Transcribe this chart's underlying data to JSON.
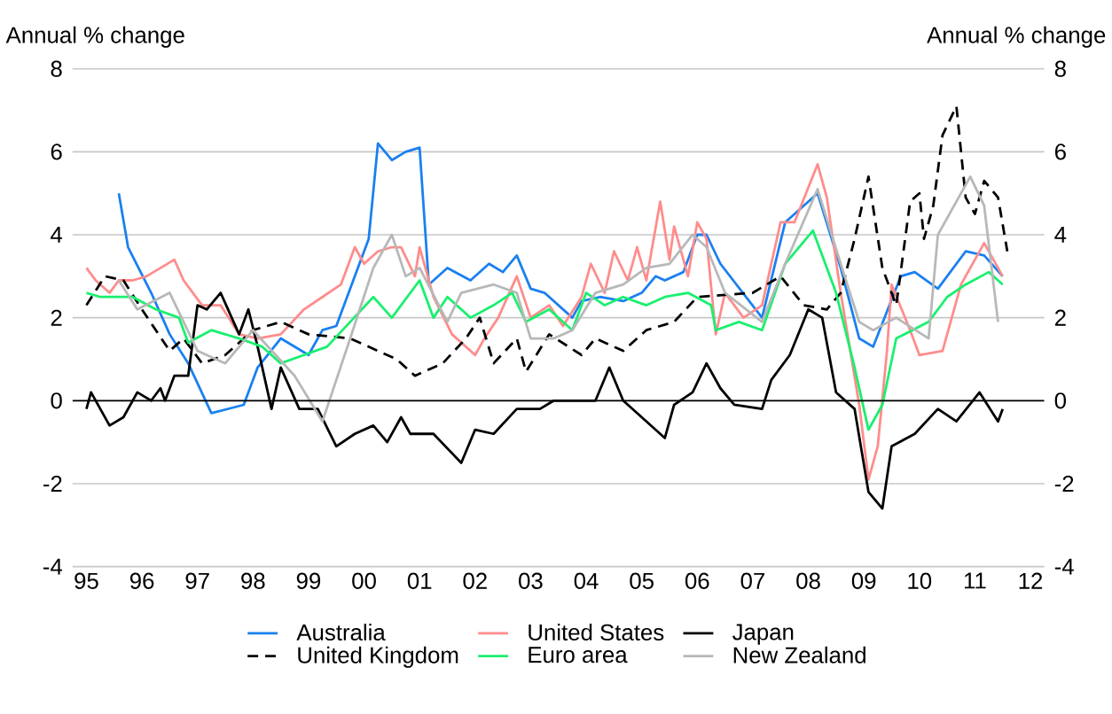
{
  "chart_data": {
    "type": "line",
    "ylabel": "Annual % change",
    "y2label": "Annual % change",
    "xlim": [
      "1995-04",
      "2012-10"
    ],
    "xticks": [
      {
        "value": "1995-07",
        "label": "95"
      },
      {
        "value": "1996-07",
        "label": "96"
      },
      {
        "value": "1997-07",
        "label": "97"
      },
      {
        "value": "1998-07",
        "label": "98"
      },
      {
        "value": "1999-07",
        "label": "99"
      },
      {
        "value": "2000-07",
        "label": "00"
      },
      {
        "value": "2001-07",
        "label": "01"
      },
      {
        "value": "2002-07",
        "label": "02"
      },
      {
        "value": "2003-07",
        "label": "03"
      },
      {
        "value": "2004-07",
        "label": "04"
      },
      {
        "value": "2005-07",
        "label": "05"
      },
      {
        "value": "2006-07",
        "label": "06"
      },
      {
        "value": "2007-07",
        "label": "07"
      },
      {
        "value": "2008-07",
        "label": "08"
      },
      {
        "value": "2009-07",
        "label": "09"
      },
      {
        "value": "2010-07",
        "label": "10"
      },
      {
        "value": "2011-07",
        "label": "11"
      },
      {
        "value": "2012-07",
        "label": "12"
      }
    ],
    "ylim": [
      -4,
      8
    ],
    "yticks": [
      -4,
      -2,
      0,
      2,
      4,
      6,
      8
    ],
    "y2lim": [
      -4,
      8
    ],
    "y2ticks": [
      -4,
      -2,
      0,
      2,
      4,
      6,
      8
    ],
    "grid": "y",
    "legend": "bottom",
    "ref_lines": [
      {
        "axis": "y",
        "value": 0,
        "color": "#000000"
      }
    ],
    "series": [
      {
        "name": "Australia",
        "color": "#1a80f0",
        "line_style": "solid",
        "x": [
          "1996-02",
          "1996-04",
          "1996-09",
          "1997-01",
          "1997-05",
          "1997-10",
          "1998-05",
          "1998-08",
          "1999-01",
          "1999-07",
          "1999-10",
          "2000-01",
          "2000-05",
          "2000-08",
          "2000-10",
          "2001-01",
          "2001-04",
          "2001-07",
          "2001-09",
          "2002-01",
          "2002-06",
          "2002-10",
          "2003-01",
          "2003-04",
          "2003-07",
          "2003-10",
          "2004-04",
          "2004-06",
          "2004-10",
          "2005-03",
          "2005-07",
          "2005-10",
          "2005-12",
          "2006-04",
          "2006-07",
          "2006-09",
          "2006-12",
          "2007-09",
          "2008-02",
          "2008-09",
          "2009-02",
          "2009-06",
          "2009-09",
          "2010-03",
          "2010-06",
          "2010-11",
          "2011-05",
          "2011-09",
          "2012-01"
        ],
        "values": [
          5.0,
          3.7,
          2.6,
          1.6,
          0.9,
          -0.3,
          -0.1,
          0.8,
          1.5,
          1.1,
          1.7,
          1.8,
          3.0,
          3.9,
          6.2,
          5.8,
          6.0,
          6.1,
          2.8,
          3.2,
          2.9,
          3.3,
          3.1,
          3.5,
          2.7,
          2.6,
          2.0,
          2.4,
          2.5,
          2.4,
          2.6,
          3.0,
          2.9,
          3.1,
          4.0,
          4.0,
          3.3,
          2.0,
          4.3,
          5.0,
          3.2,
          1.5,
          1.3,
          3.0,
          3.1,
          2.7,
          3.6,
          3.5,
          3.0
        ]
      },
      {
        "name": "United States",
        "color": "#ff8c8c",
        "line_style": "solid",
        "x": [
          "1995-07",
          "1995-09",
          "1995-12",
          "1996-02",
          "1996-05",
          "1996-08",
          "1997-02",
          "1997-04",
          "1997-08",
          "1997-12",
          "1998-04",
          "1998-08",
          "1999-01",
          "1999-06",
          "1999-10",
          "2000-02",
          "2000-05",
          "2000-07",
          "2000-10",
          "2001-01",
          "2001-03",
          "2001-06",
          "2001-07",
          "2001-10",
          "2002-02",
          "2002-07",
          "2002-09",
          "2002-12",
          "2003-04",
          "2003-07",
          "2003-11",
          "2004-02",
          "2004-06",
          "2004-08",
          "2004-11",
          "2005-01",
          "2005-04",
          "2005-06",
          "2005-08",
          "2005-11",
          "2006-01",
          "2006-02",
          "2006-05",
          "2006-07",
          "2006-09",
          "2006-11",
          "2007-01",
          "2007-05",
          "2007-09",
          "2008-01",
          "2008-04",
          "2008-09",
          "2008-11",
          "2009-02",
          "2009-06",
          "2009-08",
          "2009-10",
          "2009-12",
          "2010-01",
          "2010-05",
          "2010-07",
          "2010-12",
          "2011-04",
          "2011-09",
          "2012-01"
        ],
        "values": [
          3.2,
          2.9,
          2.6,
          2.9,
          2.9,
          3.0,
          3.4,
          2.9,
          2.3,
          2.3,
          1.6,
          1.5,
          1.6,
          2.2,
          2.5,
          2.8,
          3.7,
          3.3,
          3.6,
          3.7,
          3.7,
          3.0,
          3.7,
          2.5,
          1.6,
          1.1,
          1.5,
          2.0,
          3.0,
          2.0,
          2.3,
          1.8,
          2.5,
          3.3,
          2.6,
          3.6,
          2.9,
          3.7,
          2.9,
          4.8,
          3.4,
          4.2,
          3.0,
          4.3,
          3.9,
          1.6,
          2.6,
          2.0,
          2.3,
          4.3,
          4.3,
          5.7,
          4.9,
          2.6,
          -0.1,
          -1.9,
          -1.1,
          1.2,
          2.8,
          1.7,
          1.1,
          1.2,
          2.8,
          3.8,
          3.0
        ]
      },
      {
        "name": "Japan",
        "color": "#000000",
        "line_style": "solid",
        "x": [
          "1995-07",
          "1995-08",
          "1995-12",
          "1996-03",
          "1996-06",
          "1996-09",
          "1996-11",
          "1996-12",
          "1997-02",
          "1997-05",
          "1997-07",
          "1997-09",
          "1997-12",
          "1998-04",
          "1998-06",
          "1998-08",
          "1998-11",
          "1999-01",
          "1999-05",
          "1999-09",
          "2000-01",
          "2000-05",
          "2000-09",
          "2000-12",
          "2001-03",
          "2001-05",
          "2001-10",
          "2002-04",
          "2002-07",
          "2002-11",
          "2003-04",
          "2003-09",
          "2003-12",
          "2004-06",
          "2004-09",
          "2004-12",
          "2005-03",
          "2005-07",
          "2005-12",
          "2006-02",
          "2006-06",
          "2006-09",
          "2006-12",
          "2007-03",
          "2007-09",
          "2007-11",
          "2008-03",
          "2008-07",
          "2008-10",
          "2009-01",
          "2009-05",
          "2009-08",
          "2009-11",
          "2010-01",
          "2010-06",
          "2010-11",
          "2011-03",
          "2011-08",
          "2011-12",
          "2012-01"
        ],
        "values": [
          -0.2,
          0.2,
          -0.6,
          -0.4,
          0.2,
          0.0,
          0.3,
          0.0,
          0.6,
          0.6,
          2.3,
          2.2,
          2.6,
          1.6,
          2.2,
          1.3,
          -0.2,
          0.8,
          -0.2,
          -0.2,
          -1.1,
          -0.8,
          -0.6,
          -1.0,
          -0.4,
          -0.8,
          -0.8,
          -1.5,
          -0.7,
          -0.8,
          -0.2,
          -0.2,
          0.0,
          0.0,
          0.0,
          0.8,
          0.0,
          -0.4,
          -0.9,
          -0.1,
          0.2,
          0.9,
          0.3,
          -0.1,
          -0.2,
          0.5,
          1.1,
          2.2,
          2.0,
          0.2,
          -0.2,
          -2.2,
          -2.6,
          -1.1,
          -0.8,
          -0.2,
          -0.5,
          0.2,
          -0.5,
          -0.2
        ]
      },
      {
        "name": "United Kingdom",
        "color": "#000000",
        "line_style": "dashed",
        "x": [
          "1995-07",
          "1995-11",
          "1996-03",
          "1996-07",
          "1997-01",
          "1997-04",
          "1997-08",
          "1998-01",
          "1998-07",
          "1999-01",
          "1999-07",
          "2000-04",
          "2001-02",
          "2001-06",
          "2001-12",
          "2002-05",
          "2002-08",
          "2002-11",
          "2003-04",
          "2003-06",
          "2003-11",
          "2004-06",
          "2004-09",
          "2005-03",
          "2005-08",
          "2006-02",
          "2006-07",
          "2007-07",
          "2008-01",
          "2008-06",
          "2008-11",
          "2009-02",
          "2009-05",
          "2009-08",
          "2009-11",
          "2010-02",
          "2010-05",
          "2010-07",
          "2010-08",
          "2010-10",
          "2010-12",
          "2011-03",
          "2011-05",
          "2011-07",
          "2011-09",
          "2011-12",
          "2012-02"
        ],
        "values": [
          2.3,
          3.0,
          2.9,
          2.2,
          1.2,
          1.5,
          0.9,
          1.1,
          1.7,
          1.9,
          1.6,
          1.5,
          1.0,
          0.6,
          0.9,
          1.5,
          2.0,
          0.9,
          1.5,
          0.7,
          1.6,
          1.1,
          1.5,
          1.2,
          1.7,
          1.9,
          2.5,
          2.6,
          3.0,
          2.3,
          2.2,
          2.6,
          3.9,
          5.4,
          3.2,
          2.3,
          4.8,
          5.0,
          3.9,
          4.7,
          6.4,
          7.1,
          4.9,
          4.5,
          5.3,
          4.9,
          3.6
        ]
      },
      {
        "name": "Euro area",
        "color": "#19f06e",
        "line_style": "solid",
        "x": [
          "1995-07",
          "1995-10",
          "1996-05",
          "1996-10",
          "1997-03",
          "1997-05",
          "1997-10",
          "1998-04",
          "1998-09",
          "1999-01",
          "1999-06",
          "1999-11",
          "2000-04",
          "2000-09",
          "2001-01",
          "2001-07",
          "2001-10",
          "2002-01",
          "2002-06",
          "2002-11",
          "2003-03",
          "2003-06",
          "2003-11",
          "2004-04",
          "2004-07",
          "2004-11",
          "2005-03",
          "2005-08",
          "2005-12",
          "2006-05",
          "2006-10",
          "2006-11",
          "2007-04",
          "2007-09",
          "2008-02",
          "2008-08",
          "2009-01",
          "2009-05",
          "2009-08",
          "2009-11",
          "2010-02",
          "2010-09",
          "2011-01",
          "2011-05",
          "2011-10",
          "2012-01"
        ],
        "values": [
          2.6,
          2.5,
          2.5,
          2.2,
          2.0,
          1.4,
          1.7,
          1.5,
          1.3,
          0.9,
          1.1,
          1.3,
          1.9,
          2.5,
          2.0,
          2.9,
          2.0,
          2.5,
          2.0,
          2.3,
          2.6,
          1.9,
          2.2,
          1.7,
          2.6,
          2.3,
          2.5,
          2.3,
          2.5,
          2.6,
          2.3,
          1.7,
          1.9,
          1.7,
          3.3,
          4.1,
          2.6,
          0.8,
          -0.7,
          -0.1,
          1.5,
          1.9,
          2.5,
          2.8,
          3.1,
          2.8
        ]
      },
      {
        "name": "New Zealand",
        "color": "#b8b8b8",
        "line_style": "solid",
        "x": [
          "1996-02",
          "1996-06",
          "1997-01",
          "1997-07",
          "1998-01",
          "1998-07",
          "1999-04",
          "1999-10",
          "2000-04",
          "2000-09",
          "2001-01",
          "2001-04",
          "2001-07",
          "2002-01",
          "2002-04",
          "2002-11",
          "2003-04",
          "2003-07",
          "2003-12",
          "2004-04",
          "2004-09",
          "2005-03",
          "2005-08",
          "2006-01",
          "2006-06",
          "2006-09",
          "2007-01",
          "2007-09",
          "2008-02",
          "2008-09",
          "2009-02",
          "2009-06",
          "2009-09",
          "2010-02",
          "2010-09",
          "2010-11",
          "2011-06",
          "2011-09",
          "2011-12"
        ],
        "values": [
          2.9,
          2.2,
          2.6,
          1.2,
          0.9,
          1.7,
          0.6,
          -0.5,
          1.5,
          3.2,
          4.0,
          3.0,
          3.2,
          1.9,
          2.6,
          2.8,
          2.6,
          1.5,
          1.5,
          1.7,
          2.6,
          2.8,
          3.2,
          3.3,
          4.0,
          3.7,
          2.6,
          1.9,
          3.3,
          5.1,
          3.3,
          1.9,
          1.7,
          2.0,
          1.5,
          4.0,
          5.4,
          4.7,
          1.9
        ]
      }
    ]
  }
}
